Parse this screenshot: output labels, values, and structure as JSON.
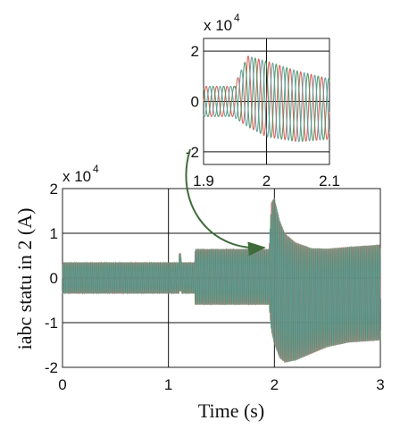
{
  "chart_data": [
    {
      "type": "line",
      "title": "",
      "xlabel": "Time (s)",
      "ylabel": "iabc statu in 2 (A)",
      "xlim": [
        0,
        3
      ],
      "ylim": [
        -20000,
        20000
      ],
      "exponent_label": {
        "base": "x 10",
        "exp": "4"
      },
      "xticks": [
        0,
        1,
        2,
        3
      ],
      "xtick_labels": [
        "0",
        "1",
        "2",
        "3"
      ],
      "yticks": [
        -20000,
        -10000,
        0,
        10000,
        20000
      ],
      "ytick_labels": [
        "-2",
        "-1",
        "0",
        "1",
        "2"
      ],
      "grid": true,
      "envelope": {
        "x": [
          0,
          1.1,
          1.1,
          1.12,
          1.12,
          1.25,
          1.25,
          1.95,
          1.95,
          1.97,
          2.0,
          2.05,
          2.1,
          2.2,
          2.35,
          2.5,
          2.7,
          3.0
        ],
        "upper": [
          3500,
          3500,
          5500,
          5500,
          3500,
          3500,
          6500,
          6500,
          7000,
          17000,
          18000,
          13000,
          10000,
          8000,
          6700,
          6600,
          7000,
          7500
        ],
        "lower": [
          -3500,
          -3500,
          -3000,
          -3000,
          -3500,
          -3500,
          -6000,
          -6000,
          -6500,
          -12000,
          -15000,
          -18000,
          -19000,
          -18500,
          -17000,
          -15500,
          -14500,
          -14000
        ]
      },
      "series": [
        {
          "color": "#d9534a"
        },
        {
          "color": "#4a8f5c"
        },
        {
          "color": "#5a9a9e"
        }
      ]
    },
    {
      "type": "line",
      "title": "",
      "xlabel": "",
      "ylabel": "",
      "xlim": [
        1.9,
        2.1
      ],
      "ylim": [
        -25000,
        25000
      ],
      "exponent_label": {
        "base": "x 10",
        "exp": "4"
      },
      "xticks": [
        1.9,
        2.0,
        2.1
      ],
      "xtick_labels": [
        "1.9",
        "2",
        "2.1"
      ],
      "yticks": [
        -20000,
        0,
        20000
      ],
      "ytick_labels": [
        "-2",
        "0",
        "2"
      ],
      "grid": true,
      "envelope": {
        "x": [
          1.9,
          1.95,
          1.95,
          1.97,
          2.0,
          2.05,
          2.1
        ],
        "upper": [
          6000,
          6000,
          7000,
          18000,
          16000,
          12000,
          9000
        ],
        "lower": [
          -6000,
          -6000,
          -6500,
          -10000,
          -14000,
          -16000,
          -15000
        ]
      },
      "series": [
        {
          "color": "#d9534a"
        },
        {
          "color": "#4a8f5c"
        },
        {
          "color": "#5a9a9e"
        }
      ]
    }
  ]
}
